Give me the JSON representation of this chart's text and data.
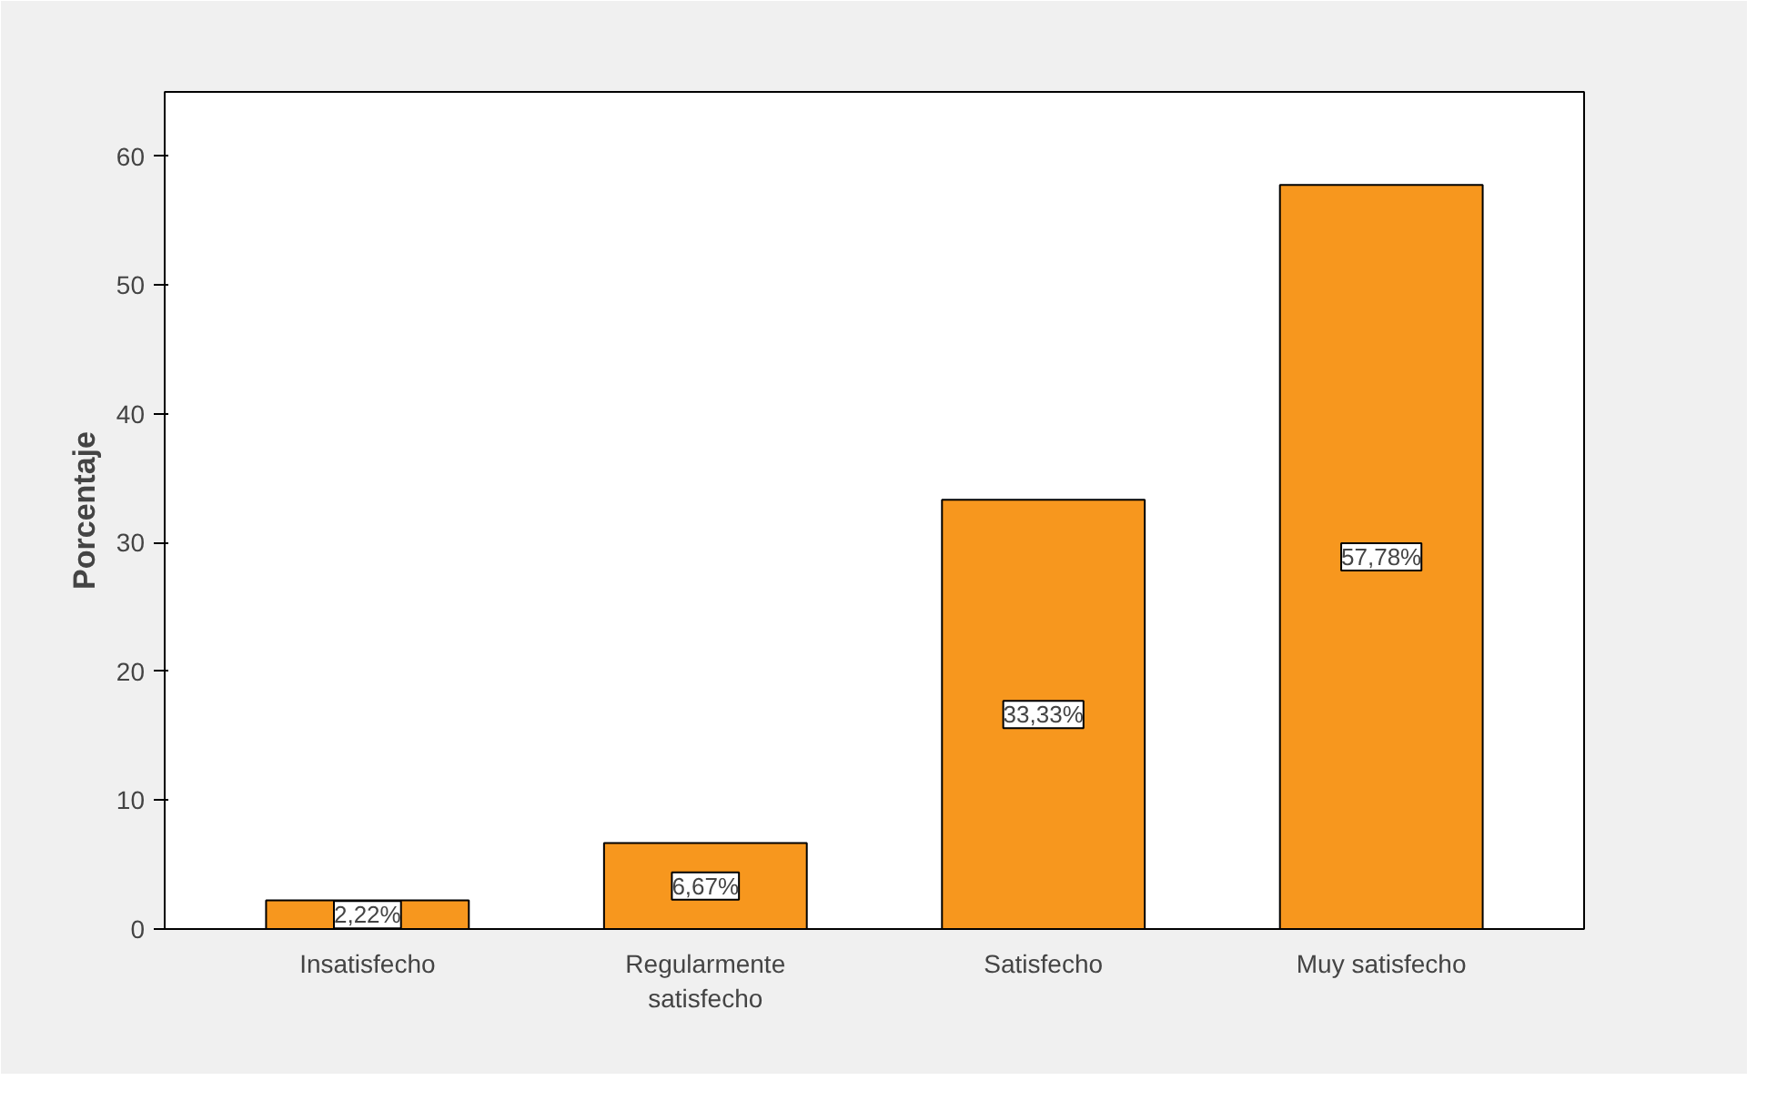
{
  "chart_data": {
    "type": "bar",
    "ylabel": "Porcentaje",
    "categories": [
      "Insatisfecho",
      "Regularmente satisfecho",
      "Satisfecho",
      "Muy satisfecho"
    ],
    "values": [
      2.22,
      6.67,
      33.33,
      57.78
    ],
    "value_labels": [
      "2,22%",
      "6,67%",
      "33,33%",
      "57,78%"
    ],
    "color": "#f7971e",
    "ylim": [
      0,
      65
    ],
    "yticks": [
      0,
      10,
      20,
      30,
      40,
      50,
      60
    ],
    "grid": false
  }
}
